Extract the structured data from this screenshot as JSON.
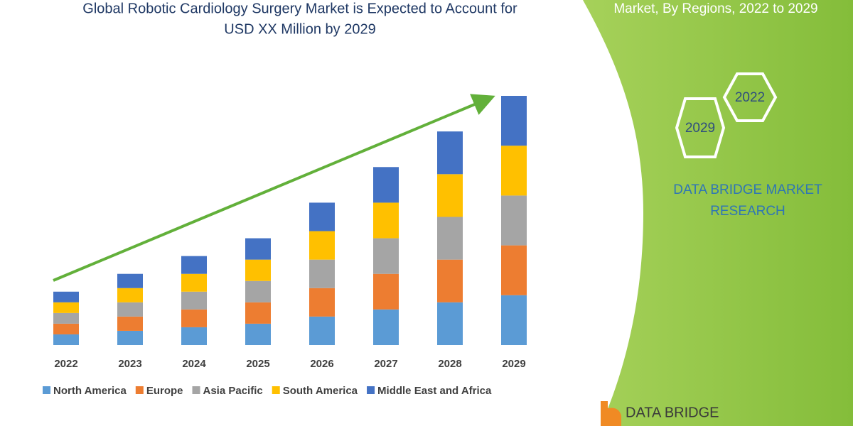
{
  "chart_data": {
    "type": "stacked-bar",
    "title": [
      "Global Robotic Cardiology Surgery Market is Expected to Account for",
      "USD XX Million by 2029"
    ],
    "categories": [
      "2022",
      "2023",
      "2024",
      "2025",
      "2026",
      "2027",
      "2028",
      "2029"
    ],
    "series": [
      {
        "name": "North America",
        "color": "#5b9bd5",
        "values": [
          15,
          20,
          25,
          30,
          40,
          50,
          60,
          70
        ]
      },
      {
        "name": "Europe",
        "color": "#ed7d31",
        "values": [
          15,
          20,
          25,
          30,
          40,
          50,
          60,
          70
        ]
      },
      {
        "name": "Asia Pacific",
        "color": "#a5a5a5",
        "values": [
          15,
          20,
          25,
          30,
          40,
          50,
          60,
          70
        ]
      },
      {
        "name": "South America",
        "color": "#ffc000",
        "values": [
          15,
          20,
          25,
          30,
          40,
          50,
          60,
          70
        ]
      },
      {
        "name": "Middle East and Africa",
        "color": "#4472c4",
        "values": [
          15,
          20,
          25,
          30,
          40,
          50,
          60,
          70
        ]
      }
    ]
  },
  "panel": {
    "subtitle": "Market, By Regions, 2022 to 2029",
    "hexagons": [
      "2022",
      "2029"
    ],
    "brand": [
      "DATA BRIDGE MARKET",
      "RESEARCH"
    ],
    "logo": "DATA BRIDGE"
  }
}
